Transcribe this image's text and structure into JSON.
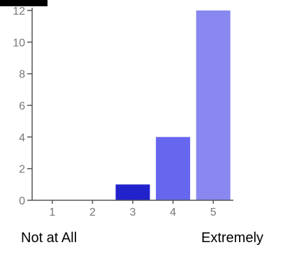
{
  "chart_data": {
    "type": "bar",
    "categories": [
      "1",
      "2",
      "3",
      "4",
      "5"
    ],
    "values": [
      0,
      0,
      1,
      4,
      12
    ],
    "ylim": [
      0,
      12
    ],
    "yticks": [
      0,
      2,
      4,
      6,
      8,
      10,
      12
    ],
    "grid": false,
    "bar_colors": [
      "#3333cc",
      "#4646dd",
      "#2222cc",
      "#6666ee",
      "#8888f0"
    ],
    "axis_color": "#555555"
  },
  "scale": {
    "low_label": "Not at All",
    "high_label": "Extremely"
  }
}
